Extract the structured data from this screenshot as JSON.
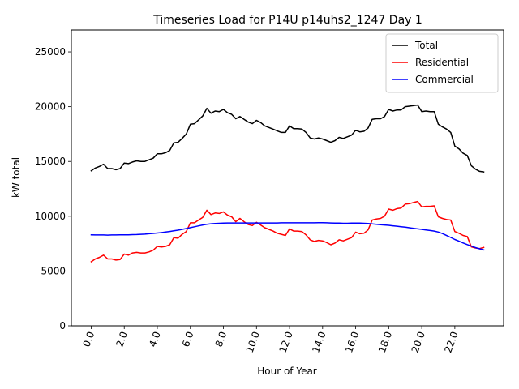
{
  "chart_data": {
    "type": "line",
    "title": "Timeseries Load for P14U p14uhs2_1247  Day 1",
    "xlabel": "Hour of Year",
    "ylabel": "kW total",
    "xlim": [
      -1.2,
      24.95
    ],
    "ylim": [
      0,
      27000
    ],
    "xticks": [
      0,
      2,
      4,
      6,
      8,
      10,
      12,
      14,
      16,
      18,
      20,
      22
    ],
    "xtick_labels": [
      "0.0",
      "2.0",
      "4.0",
      "6.0",
      "8.0",
      "10.0",
      "12.0",
      "14.0",
      "16.0",
      "18.0",
      "20.0",
      "22.0"
    ],
    "yticks": [
      0,
      5000,
      10000,
      15000,
      20000,
      25000
    ],
    "ytick_labels": [
      "0",
      "5000",
      "10000",
      "15000",
      "20000",
      "25000"
    ],
    "legend_position": "top-right",
    "x": [
      0.0,
      0.25,
      0.5,
      0.75,
      1.0,
      1.25,
      1.5,
      1.75,
      2.0,
      2.25,
      2.5,
      2.75,
      3.0,
      3.25,
      3.5,
      3.75,
      4.0,
      4.25,
      4.5,
      4.75,
      5.0,
      5.25,
      5.5,
      5.75,
      6.0,
      6.25,
      6.5,
      6.75,
      7.0,
      7.25,
      7.5,
      7.75,
      8.0,
      8.25,
      8.5,
      8.75,
      9.0,
      9.25,
      9.5,
      9.75,
      10.0,
      10.25,
      10.5,
      10.75,
      11.0,
      11.25,
      11.5,
      11.75,
      12.0,
      12.25,
      12.5,
      12.75,
      13.0,
      13.25,
      13.5,
      13.75,
      14.0,
      14.25,
      14.5,
      14.75,
      15.0,
      15.25,
      15.5,
      15.75,
      16.0,
      16.25,
      16.5,
      16.75,
      17.0,
      17.25,
      17.5,
      17.75,
      18.0,
      18.25,
      18.5,
      18.75,
      19.0,
      19.25,
      19.5,
      19.75,
      20.0,
      20.25,
      20.5,
      20.75,
      21.0,
      21.25,
      21.5,
      21.75,
      22.0,
      22.25,
      22.5,
      22.75,
      23.0,
      23.25,
      23.5,
      23.75
    ],
    "series": [
      {
        "name": "Total",
        "color": "#000000",
        "values": [
          14150,
          14400,
          14550,
          14750,
          14350,
          14350,
          14250,
          14350,
          14850,
          14800,
          14950,
          15050,
          15000,
          15000,
          15150,
          15300,
          15700,
          15700,
          15800,
          16000,
          16700,
          16750,
          17100,
          17500,
          18400,
          18450,
          18800,
          19150,
          19850,
          19400,
          19600,
          19550,
          19750,
          19450,
          19300,
          18900,
          19100,
          18850,
          18600,
          18450,
          18750,
          18550,
          18250,
          18100,
          17950,
          17800,
          17650,
          17650,
          18250,
          18000,
          18000,
          17950,
          17650,
          17150,
          17050,
          17150,
          17050,
          16900,
          16750,
          16900,
          17200,
          17100,
          17250,
          17400,
          17850,
          17700,
          17750,
          18050,
          18850,
          18900,
          18900,
          19100,
          19750,
          19600,
          19700,
          19700,
          20000,
          20050,
          20100,
          20150,
          19550,
          19600,
          19550,
          19550,
          18400,
          18150,
          17950,
          17650,
          16400,
          16150,
          15750,
          15550,
          14600,
          14300,
          14100,
          14050
        ]
      },
      {
        "name": "Residential",
        "color": "#ff0000",
        "values": [
          5850,
          6100,
          6250,
          6450,
          6100,
          6100,
          6000,
          6050,
          6550,
          6450,
          6650,
          6700,
          6650,
          6650,
          6750,
          6900,
          7250,
          7200,
          7250,
          7400,
          8050,
          8000,
          8350,
          8600,
          9400,
          9400,
          9650,
          9900,
          10550,
          10150,
          10300,
          10250,
          10400,
          10100,
          9950,
          9500,
          9800,
          9500,
          9250,
          9150,
          9450,
          9200,
          8950,
          8800,
          8650,
          8450,
          8350,
          8250,
          8850,
          8650,
          8650,
          8600,
          8300,
          7850,
          7700,
          7800,
          7750,
          7600,
          7400,
          7550,
          7850,
          7750,
          7900,
          8050,
          8550,
          8400,
          8450,
          8750,
          9650,
          9750,
          9800,
          10000,
          10650,
          10550,
          10700,
          10750,
          11100,
          11150,
          11250,
          11350,
          10850,
          10900,
          10900,
          10950,
          9950,
          9800,
          9700,
          9650,
          8600,
          8450,
          8250,
          8150,
          7200,
          7100,
          7050,
          7150
        ]
      },
      {
        "name": "Commercial",
        "color": "#0000ff",
        "values": [
          8300,
          8290,
          8290,
          8290,
          8280,
          8290,
          8290,
          8300,
          8300,
          8310,
          8320,
          8330,
          8350,
          8370,
          8400,
          8430,
          8470,
          8510,
          8560,
          8610,
          8670,
          8730,
          8800,
          8880,
          8960,
          9040,
          9120,
          9200,
          9270,
          9310,
          9340,
          9360,
          9380,
          9390,
          9390,
          9390,
          9390,
          9390,
          9390,
          9390,
          9390,
          9390,
          9390,
          9390,
          9390,
          9390,
          9400,
          9400,
          9400,
          9400,
          9400,
          9400,
          9400,
          9400,
          9400,
          9410,
          9410,
          9400,
          9390,
          9380,
          9370,
          9360,
          9360,
          9370,
          9370,
          9370,
          9360,
          9340,
          9300,
          9260,
          9230,
          9200,
          9170,
          9130,
          9090,
          9050,
          9000,
          8950,
          8900,
          8850,
          8800,
          8750,
          8700,
          8650,
          8560,
          8420,
          8240,
          8060,
          7880,
          7720,
          7560,
          7410,
          7270,
          7140,
          7030,
          6930
        ]
      }
    ]
  }
}
